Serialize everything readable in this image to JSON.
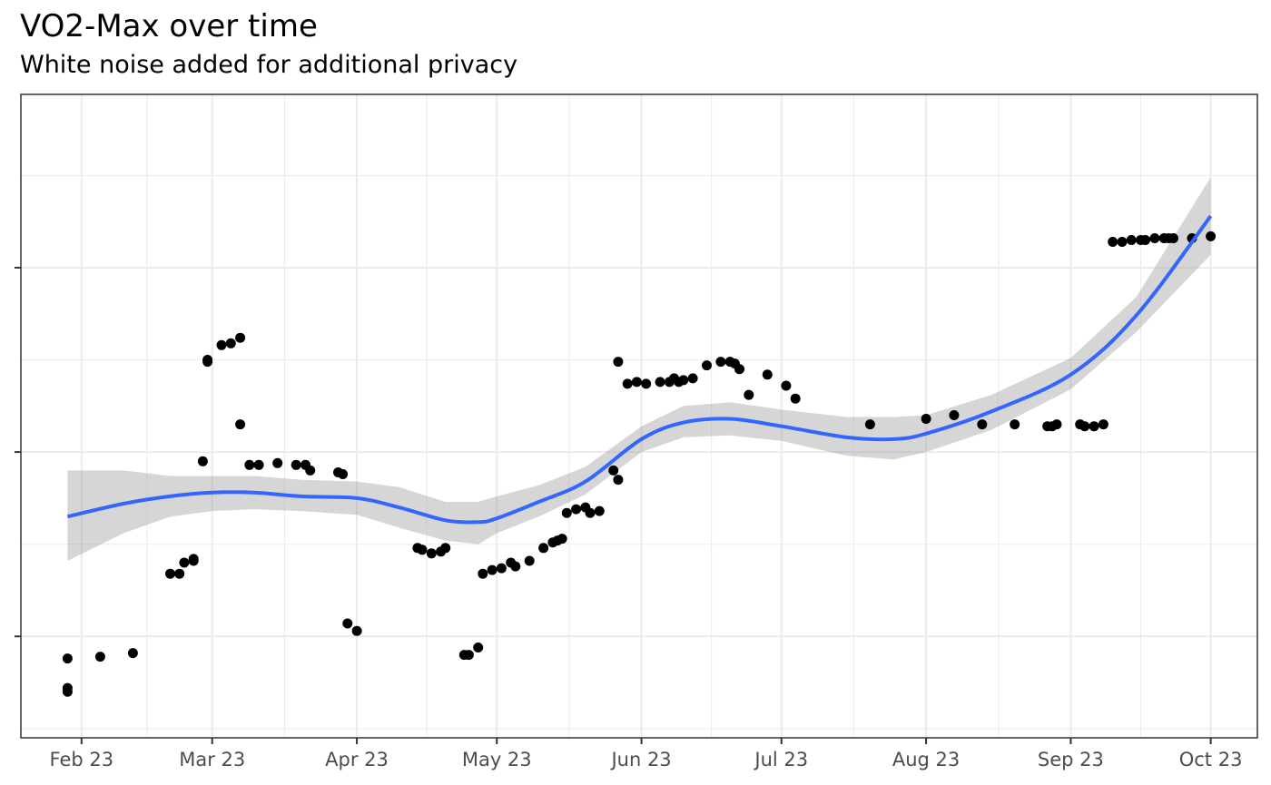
{
  "chart_data": {
    "type": "scatter",
    "title": "VO2-Max over time",
    "subtitle": "White noise added for additional privacy",
    "xlabel": "",
    "ylabel": "",
    "x_tick_labels": [
      {
        "date": "2023-02-01",
        "label": "Feb 23"
      },
      {
        "date": "2023-03-01",
        "label": "Mar 23"
      },
      {
        "date": "2023-04-01",
        "label": "Apr 23"
      },
      {
        "date": "2023-05-01",
        "label": "May 23"
      },
      {
        "date": "2023-06-01",
        "label": "Jun 23"
      },
      {
        "date": "2023-07-01",
        "label": "Jul 23"
      },
      {
        "date": "2023-08-01",
        "label": "Aug 23"
      },
      {
        "date": "2023-09-01",
        "label": "Sep 23"
      },
      {
        "date": "2023-10-01",
        "label": "Oct 23"
      }
    ],
    "xlim": [
      "2023-01-19",
      "2023-10-11"
    ],
    "ylim": [
      0.45,
      3.94
    ],
    "y_ticks": [
      1,
      2,
      3
    ],
    "y_tick_labels_shown": false,
    "grid": true,
    "colors": {
      "points": "#000000",
      "smooth_line": "#3366ff",
      "ribbon": "#999999",
      "panel_border": "#333333",
      "grid": "#ebebeb"
    },
    "series": [
      {
        "type": "scatter",
        "points": [
          {
            "x": "2023-01-29",
            "y": 0.7
          },
          {
            "x": "2023-01-29",
            "y": 0.72
          },
          {
            "x": "2023-01-29",
            "y": 0.88
          },
          {
            "x": "2023-02-05",
            "y": 0.89
          },
          {
            "x": "2023-02-12",
            "y": 0.91
          },
          {
            "x": "2023-02-20",
            "y": 1.34
          },
          {
            "x": "2023-02-22",
            "y": 1.34
          },
          {
            "x": "2023-02-23",
            "y": 1.4
          },
          {
            "x": "2023-02-25",
            "y": 1.41
          },
          {
            "x": "2023-02-25",
            "y": 1.42
          },
          {
            "x": "2023-02-27",
            "y": 1.95
          },
          {
            "x": "2023-02-28",
            "y": 2.49
          },
          {
            "x": "2023-02-28",
            "y": 2.5
          },
          {
            "x": "2023-03-03",
            "y": 2.58
          },
          {
            "x": "2023-03-05",
            "y": 2.59
          },
          {
            "x": "2023-03-07",
            "y": 2.62
          },
          {
            "x": "2023-03-07",
            "y": 2.15
          },
          {
            "x": "2023-03-09",
            "y": 1.93
          },
          {
            "x": "2023-03-11",
            "y": 1.93
          },
          {
            "x": "2023-03-15",
            "y": 1.94
          },
          {
            "x": "2023-03-19",
            "y": 1.93
          },
          {
            "x": "2023-03-21",
            "y": 1.93
          },
          {
            "x": "2023-03-22",
            "y": 1.9
          },
          {
            "x": "2023-03-28",
            "y": 1.89
          },
          {
            "x": "2023-03-29",
            "y": 1.88
          },
          {
            "x": "2023-03-30",
            "y": 1.07
          },
          {
            "x": "2023-04-01",
            "y": 1.03
          },
          {
            "x": "2023-04-14",
            "y": 1.48
          },
          {
            "x": "2023-04-15",
            "y": 1.47
          },
          {
            "x": "2023-04-17",
            "y": 1.45
          },
          {
            "x": "2023-04-19",
            "y": 1.46
          },
          {
            "x": "2023-04-20",
            "y": 1.48
          },
          {
            "x": "2023-04-24",
            "y": 0.9
          },
          {
            "x": "2023-04-25",
            "y": 0.9
          },
          {
            "x": "2023-04-27",
            "y": 0.94
          },
          {
            "x": "2023-04-28",
            "y": 1.34
          },
          {
            "x": "2023-04-30",
            "y": 1.36
          },
          {
            "x": "2023-05-02",
            "y": 1.37
          },
          {
            "x": "2023-05-04",
            "y": 1.4
          },
          {
            "x": "2023-05-05",
            "y": 1.38
          },
          {
            "x": "2023-05-08",
            "y": 1.41
          },
          {
            "x": "2023-05-11",
            "y": 1.48
          },
          {
            "x": "2023-05-13",
            "y": 1.51
          },
          {
            "x": "2023-05-14",
            "y": 1.52
          },
          {
            "x": "2023-05-15",
            "y": 1.53
          },
          {
            "x": "2023-05-16",
            "y": 1.67
          },
          {
            "x": "2023-05-18",
            "y": 1.69
          },
          {
            "x": "2023-05-20",
            "y": 1.7
          },
          {
            "x": "2023-05-21",
            "y": 1.67
          },
          {
            "x": "2023-05-23",
            "y": 1.68
          },
          {
            "x": "2023-05-26",
            "y": 1.9
          },
          {
            "x": "2023-05-27",
            "y": 1.85
          },
          {
            "x": "2023-05-27",
            "y": 2.49
          },
          {
            "x": "2023-05-29",
            "y": 2.37
          },
          {
            "x": "2023-05-31",
            "y": 2.38
          },
          {
            "x": "2023-06-02",
            "y": 2.37
          },
          {
            "x": "2023-06-05",
            "y": 2.38
          },
          {
            "x": "2023-06-07",
            "y": 2.38
          },
          {
            "x": "2023-06-08",
            "y": 2.4
          },
          {
            "x": "2023-06-09",
            "y": 2.38
          },
          {
            "x": "2023-06-10",
            "y": 2.39
          },
          {
            "x": "2023-06-12",
            "y": 2.4
          },
          {
            "x": "2023-06-15",
            "y": 2.47
          },
          {
            "x": "2023-06-18",
            "y": 2.49
          },
          {
            "x": "2023-06-20",
            "y": 2.49
          },
          {
            "x": "2023-06-21",
            "y": 2.48
          },
          {
            "x": "2023-06-22",
            "y": 2.45
          },
          {
            "x": "2023-06-24",
            "y": 2.31
          },
          {
            "x": "2023-06-28",
            "y": 2.42
          },
          {
            "x": "2023-07-02",
            "y": 2.36
          },
          {
            "x": "2023-07-04",
            "y": 2.29
          },
          {
            "x": "2023-07-20",
            "y": 2.15
          },
          {
            "x": "2023-08-01",
            "y": 2.18
          },
          {
            "x": "2023-08-07",
            "y": 2.2
          },
          {
            "x": "2023-08-13",
            "y": 2.15
          },
          {
            "x": "2023-08-20",
            "y": 2.15
          },
          {
            "x": "2023-08-27",
            "y": 2.14
          },
          {
            "x": "2023-08-28",
            "y": 2.14
          },
          {
            "x": "2023-08-29",
            "y": 2.15
          },
          {
            "x": "2023-09-03",
            "y": 2.15
          },
          {
            "x": "2023-09-04",
            "y": 2.14
          },
          {
            "x": "2023-09-06",
            "y": 2.14
          },
          {
            "x": "2023-09-08",
            "y": 2.15
          },
          {
            "x": "2023-09-10",
            "y": 3.14
          },
          {
            "x": "2023-09-12",
            "y": 3.14
          },
          {
            "x": "2023-09-14",
            "y": 3.15
          },
          {
            "x": "2023-09-16",
            "y": 3.15
          },
          {
            "x": "2023-09-17",
            "y": 3.15
          },
          {
            "x": "2023-09-19",
            "y": 3.16
          },
          {
            "x": "2023-09-21",
            "y": 3.16
          },
          {
            "x": "2023-09-22",
            "y": 3.16
          },
          {
            "x": "2023-09-23",
            "y": 3.16
          },
          {
            "x": "2023-09-27",
            "y": 3.16
          },
          {
            "x": "2023-10-01",
            "y": 3.17
          }
        ]
      },
      {
        "type": "smooth",
        "points": [
          {
            "x": "2023-01-29",
            "y": 1.65,
            "lo": 1.41,
            "hi": 1.9
          },
          {
            "x": "2023-02-10",
            "y": 1.72,
            "lo": 1.56,
            "hi": 1.9
          },
          {
            "x": "2023-02-20",
            "y": 1.76,
            "lo": 1.65,
            "hi": 1.87
          },
          {
            "x": "2023-03-01",
            "y": 1.78,
            "lo": 1.68,
            "hi": 1.87
          },
          {
            "x": "2023-03-10",
            "y": 1.78,
            "lo": 1.69,
            "hi": 1.87
          },
          {
            "x": "2023-03-20",
            "y": 1.76,
            "lo": 1.68,
            "hi": 1.85
          },
          {
            "x": "2023-04-01",
            "y": 1.75,
            "lo": 1.66,
            "hi": 1.84
          },
          {
            "x": "2023-04-10",
            "y": 1.7,
            "lo": 1.59,
            "hi": 1.81
          },
          {
            "x": "2023-04-20",
            "y": 1.63,
            "lo": 1.52,
            "hi": 1.73
          },
          {
            "x": "2023-04-27",
            "y": 1.62,
            "lo": 1.5,
            "hi": 1.73
          },
          {
            "x": "2023-05-01",
            "y": 1.64,
            "lo": 1.56,
            "hi": 1.76
          },
          {
            "x": "2023-05-10",
            "y": 1.73,
            "lo": 1.65,
            "hi": 1.82
          },
          {
            "x": "2023-05-20",
            "y": 1.84,
            "lo": 1.77,
            "hi": 1.92
          },
          {
            "x": "2023-06-01",
            "y": 2.07,
            "lo": 2.0,
            "hi": 2.14
          },
          {
            "x": "2023-06-10",
            "y": 2.16,
            "lo": 2.08,
            "hi": 2.25
          },
          {
            "x": "2023-06-20",
            "y": 2.18,
            "lo": 2.09,
            "hi": 2.27
          },
          {
            "x": "2023-07-01",
            "y": 2.14,
            "lo": 2.06,
            "hi": 2.23
          },
          {
            "x": "2023-07-15",
            "y": 2.08,
            "lo": 1.98,
            "hi": 2.19
          },
          {
            "x": "2023-07-25",
            "y": 2.07,
            "lo": 1.96,
            "hi": 2.19
          },
          {
            "x": "2023-08-01",
            "y": 2.1,
            "lo": 2.0,
            "hi": 2.2
          },
          {
            "x": "2023-08-15",
            "y": 2.22,
            "lo": 2.12,
            "hi": 2.31
          },
          {
            "x": "2023-09-01",
            "y": 2.42,
            "lo": 2.34,
            "hi": 2.51
          },
          {
            "x": "2023-09-15",
            "y": 2.74,
            "lo": 2.65,
            "hi": 2.84
          },
          {
            "x": "2023-10-01",
            "y": 3.28,
            "lo": 3.07,
            "hi": 3.49
          }
        ]
      }
    ]
  }
}
